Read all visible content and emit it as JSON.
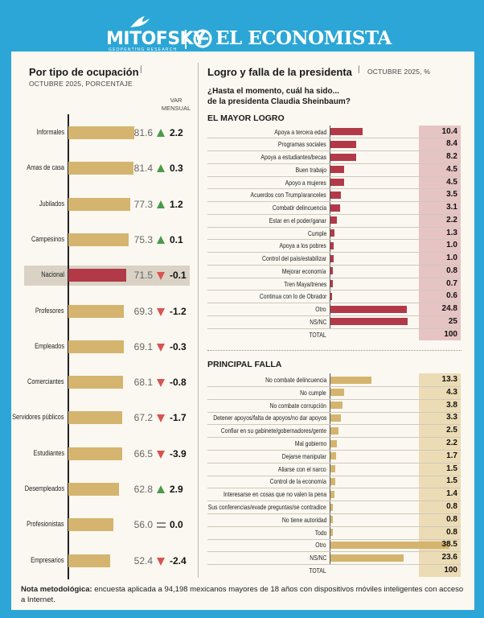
{
  "header": {
    "mitofsky": "MITOFSKY",
    "mitofsky_sub": "GEOPENTING RESEARCH",
    "economista": "EL ECONOMISTA"
  },
  "left": {
    "title": "Por tipo de ocupación",
    "subtitle": "OCTUBRE 2025, PORCENTAJE",
    "change_header": "VAR\nMENSUAL",
    "highlight_color": "#d9d2c5",
    "bar_color": "#d4b46e",
    "highlight_bar_color": "#b23a48",
    "up_color": "#4a9a4a",
    "down_color": "#d9534f"
  },
  "right": {
    "title": "Logro y falla de la presidenta",
    "subtitle": "OCTUBRE 2025, %",
    "question_line1": "¿Hasta el momento, cuál ha sido...",
    "question_line2": "de la presidenta Claudia Sheinbaum?",
    "section1": "EL MAYOR LOGRO",
    "section2": "PRINCIPAL FALLA",
    "logro_bar_color": "#b23a48",
    "logro_value_bg": "#e6c4c4",
    "falla_bar_color": "#d4b46e",
    "falla_value_bg": "#ecdcb5"
  },
  "note": {
    "label": "Nota metodológica:",
    "text": " encuesta aplicada a 94,198 mexicanos mayores de 18 años con dispositivos móviles inteligentes con acceso a Internet."
  },
  "chart_data": [
    {
      "type": "bar",
      "orientation": "horizontal",
      "title": "Por tipo de ocupación",
      "subtitle": "OCTUBRE 2025, PORCENTAJE",
      "categories": [
        "Informales",
        "Amas de casa",
        "Jubilados",
        "Campesinos",
        "Nacional",
        "Profesores",
        "Empleados",
        "Comerciantes",
        "Servidores públicos",
        "Estudiantes",
        "Desempleados",
        "Profesionistas",
        "Empresarios"
      ],
      "values": [
        81.6,
        81.4,
        77.3,
        75.3,
        71.5,
        69.3,
        69.1,
        68.1,
        67.2,
        66.5,
        62.8,
        56.0,
        52.4
      ],
      "value_labels": [
        "81.6",
        "81.4",
        "77.3",
        "75.3",
        "71.5",
        "69.3",
        "69.1",
        "68.1",
        "67.2",
        "66.5",
        "62.8",
        "56.0",
        "52.4"
      ],
      "change_series": {
        "name": "VAR MENSUAL",
        "labels": [
          "2.2",
          "0.3",
          "1.2",
          "0.1",
          "-0.1",
          "-1.2",
          "-0.3",
          "-0.8",
          "-1.7",
          "-3.9",
          "2.9",
          "0.0",
          "-2.4"
        ],
        "direction": [
          "up",
          "up",
          "up",
          "up",
          "down",
          "down",
          "down",
          "down",
          "down",
          "down",
          "up",
          "flat",
          "down"
        ]
      },
      "highlight": "Nacional"
    },
    {
      "type": "bar",
      "orientation": "horizontal",
      "title": "EL MAYOR LOGRO",
      "categories": [
        "Apoya a tercera edad",
        "Programas sociales",
        "Apoya a estudiantes/becas",
        "Buen trabajo",
        "Apoyo a mujeres",
        "Acuerdos con Trump/aranceles",
        "Combatir delincuencia",
        "Estar en el poder/ganar",
        "Cumple",
        "Apoya a los pobres",
        "Control del país/estabilizar",
        "Mejorar economía",
        "Tren Maya/trenes",
        "Continua con lo de Obrador",
        "Otro",
        "NS/NC"
      ],
      "values": [
        10.4,
        8.4,
        8.2,
        4.5,
        4.5,
        3.5,
        3.1,
        2.2,
        1.3,
        1.0,
        1.0,
        0.8,
        0.7,
        0.6,
        24.8,
        25
      ],
      "value_labels": [
        "10.4",
        "8.4",
        "8.2",
        "4.5",
        "4.5",
        "3.5",
        "3.1",
        "2.2",
        "1.3",
        "1.0",
        "1.0",
        "0.8",
        "0.7",
        "0.6",
        "24.8",
        "25"
      ],
      "total_label": "TOTAL",
      "total": "100"
    },
    {
      "type": "bar",
      "orientation": "horizontal",
      "title": "PRINCIPAL FALLA",
      "categories": [
        "No combate delincuencia",
        "No cumple",
        "No combate corrupción",
        "Detener apoyos/falta de apoyos/no dar apoyos",
        "Confiar en su gabinete/gobernadores/gente",
        "Mal gobierno",
        "Dejarse manipular",
        "Aliarse con el narco",
        "Control de la economía",
        "Interesarse en cosas que no valen la pena",
        "Sus conferencias/evade preguntas/se contradice",
        "No tiene autoridad",
        "Todo",
        "Otro",
        "NS/NC"
      ],
      "values": [
        13.3,
        4.3,
        3.8,
        3.3,
        2.5,
        2.2,
        1.7,
        1.5,
        1.5,
        1.4,
        0.8,
        0.8,
        0.8,
        38.5,
        23.6
      ],
      "value_labels": [
        "13.3",
        "4.3",
        "3.8",
        "3.3",
        "2.5",
        "2.2",
        "1.7",
        "1.5",
        "1.5",
        "1.4",
        "0.8",
        "0.8",
        "0.8",
        "38.5",
        "23.6"
      ],
      "total_label": "TOTAL",
      "total": "100"
    }
  ]
}
